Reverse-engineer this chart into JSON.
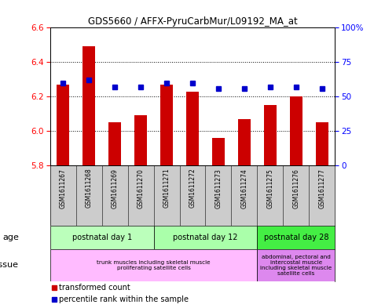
{
  "title": "GDS5660 / AFFX-PyruCarbMur/L09192_MA_at",
  "samples": [
    "GSM1611267",
    "GSM1611268",
    "GSM1611269",
    "GSM1611270",
    "GSM1611271",
    "GSM1611272",
    "GSM1611273",
    "GSM1611274",
    "GSM1611275",
    "GSM1611276",
    "GSM1611277"
  ],
  "red_values": [
    6.27,
    6.49,
    6.05,
    6.09,
    6.27,
    6.23,
    5.96,
    6.07,
    6.15,
    6.2,
    6.05
  ],
  "blue_values": [
    60,
    62,
    57,
    57,
    60,
    60,
    56,
    56,
    57,
    57,
    56
  ],
  "ymin": 5.8,
  "ymax": 6.6,
  "yticks_left": [
    5.8,
    6.0,
    6.2,
    6.4,
    6.6
  ],
  "yticks_right": [
    0,
    25,
    50,
    75,
    100
  ],
  "age_groups": [
    {
      "label": "postnatal day 1",
      "start": 0,
      "end": 4,
      "color": "#bbffbb"
    },
    {
      "label": "postnatal day 12",
      "start": 4,
      "end": 8,
      "color": "#aaffaa"
    },
    {
      "label": "postnatal day 28",
      "start": 8,
      "end": 11,
      "color": "#44ee44"
    }
  ],
  "tissue_groups": [
    {
      "label": "trunk muscles including skeletal muscle\nproliferating satellite cells",
      "start": 0,
      "end": 8,
      "color": "#ffbbff"
    },
    {
      "label": "abdominal, pectoral and\nintercostal muscle\nincluding skeletal muscle\nsatellite cells",
      "start": 8,
      "end": 11,
      "color": "#dd88ee"
    }
  ],
  "legend_red": "transformed count",
  "legend_blue": "percentile rank within the sample",
  "bar_color": "#cc0000",
  "dot_color": "#0000cc",
  "bg_plot": "#ffffff",
  "bg_fig": "#ffffff",
  "xtick_bg": "#cccccc",
  "label_age": "age",
  "label_tissue": "tissue",
  "grid_lines": [
    6.0,
    6.2,
    6.4
  ]
}
